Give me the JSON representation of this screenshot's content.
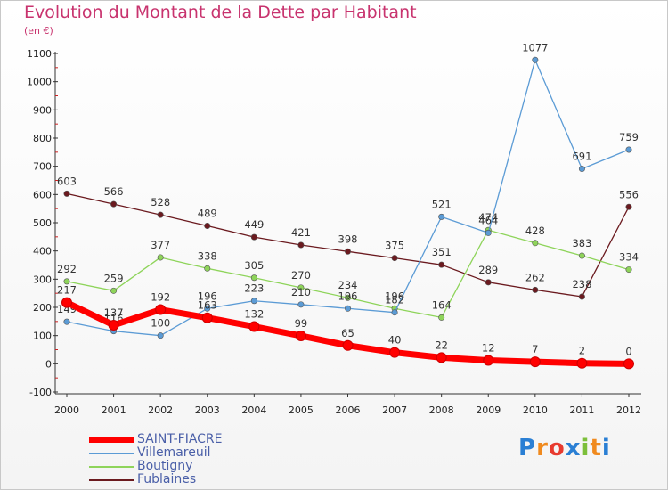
{
  "chart_data": {
    "type": "line",
    "title": "Evolution du Montant de la Dette par Habitant",
    "unit_label": "(en €)",
    "x": [
      "2000",
      "2001",
      "2002",
      "2003",
      "2004",
      "2005",
      "2006",
      "2007",
      "2008",
      "2009",
      "2010",
      "2011",
      "2012"
    ],
    "y_ticks": [
      "1100",
      "1000",
      "900",
      "800",
      "700",
      "600",
      "500",
      "400",
      "300",
      "200",
      "100",
      "0",
      "-100"
    ],
    "ylim": [
      -100,
      1100
    ],
    "grid": false,
    "legend_position": "bottom-left",
    "series": [
      {
        "name": "Fublaines",
        "color": "#6b1a1f",
        "values": [
          603,
          566,
          528,
          489,
          449,
          421,
          398,
          375,
          351,
          289,
          262,
          238,
          556
        ]
      },
      {
        "name": "Boutigny",
        "color": "#8ed45a",
        "values": [
          292,
          259,
          377,
          338,
          305,
          270,
          234,
          196,
          164,
          474,
          428,
          383,
          334
        ]
      },
      {
        "name": "Villemareuil",
        "color": "#5b9bd5",
        "values": [
          149,
          116,
          100,
          196,
          223,
          210,
          196,
          182,
          521,
          464,
          1077,
          691,
          759
        ]
      },
      {
        "name": "SAINT-FIACRE",
        "color": "#ff0000",
        "values": [
          217,
          137,
          192,
          163,
          132,
          99,
          65,
          40,
          22,
          12,
          7,
          2,
          0
        ]
      }
    ]
  },
  "legend": {
    "items": [
      {
        "label": "SAINT-FIACRE",
        "color": "#ff0000"
      },
      {
        "label": "Villemareuil",
        "color": "#5b9bd5"
      },
      {
        "label": "Boutigny",
        "color": "#8ed45a"
      },
      {
        "label": "Fublaines",
        "color": "#6b1a1f"
      }
    ]
  },
  "logo": {
    "letters": [
      "P",
      "r",
      "o",
      "x",
      "i",
      "t",
      "i"
    ],
    "colors": [
      "#2a7fd4",
      "#f08a1e",
      "#e83b2f",
      "#2a7fd4",
      "#7cbf3a",
      "#f08a1e",
      "#2a7fd4"
    ]
  }
}
